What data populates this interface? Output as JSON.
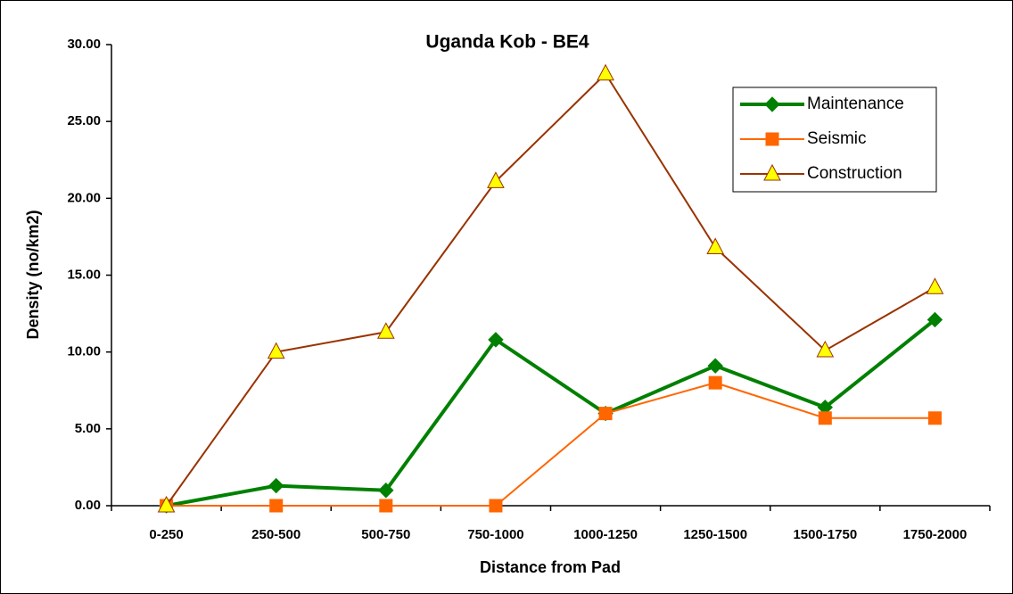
{
  "chart_data": {
    "type": "line",
    "title": "Uganda Kob - BE4",
    "x_label": "Distance from Pad",
    "y_label": "Density (no/km2)",
    "categories": [
      "0-250",
      "250-500",
      "500-750",
      "750-1000",
      "1000-1250",
      "1250-1500",
      "1500-1750",
      "1750-2000"
    ],
    "series": [
      {
        "name": "Maintenance",
        "color": "#008000",
        "marker": "diamond",
        "marker_color": "#008000",
        "values": [
          0,
          1.3,
          1.0,
          10.8,
          6.0,
          9.1,
          6.4,
          12.1
        ]
      },
      {
        "name": "Seismic",
        "color": "#ff6600",
        "marker": "square",
        "marker_color": "#ff6600",
        "values": [
          0,
          0,
          0,
          0,
          6.0,
          8.0,
          5.7,
          5.7
        ]
      },
      {
        "name": "Construction",
        "color": "#993300",
        "marker": "triangle",
        "marker_color": "#ffff00",
        "values": [
          0,
          10.0,
          11.3,
          21.1,
          28.1,
          16.8,
          10.1,
          14.2
        ]
      }
    ],
    "ylim": [
      0,
      30
    ],
    "yticks": [
      {
        "value": 0,
        "label": "0.00"
      },
      {
        "value": 5,
        "label": "5.00"
      },
      {
        "value": 10,
        "label": "10.00"
      },
      {
        "value": 15,
        "label": "15.00"
      },
      {
        "value": 20,
        "label": "20.00"
      },
      {
        "value": 25,
        "label": "25.00"
      },
      {
        "value": 30,
        "label": "30.00"
      }
    ],
    "grid": false,
    "legend": "upper right"
  }
}
